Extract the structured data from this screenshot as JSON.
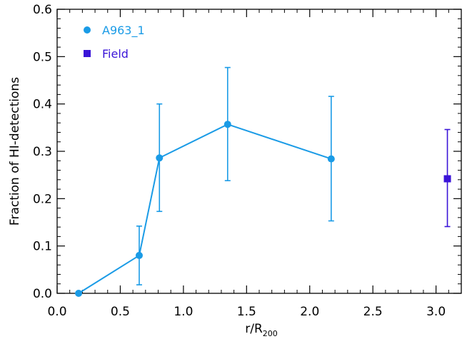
{
  "chart_data": {
    "type": "line",
    "xlabel": "r/R",
    "xlabel_sub": "200",
    "ylabel": "Fraction of HI-detections",
    "xlim": [
      0.0,
      3.2
    ],
    "ylim": [
      0.0,
      0.6
    ],
    "x_ticks": [
      "0.0",
      "0.5",
      "1.0",
      "1.5",
      "2.0",
      "2.5",
      "3.0"
    ],
    "y_ticks": [
      "0.0",
      "0.1",
      "0.2",
      "0.3",
      "0.4",
      "0.5",
      "0.6"
    ],
    "grid": false,
    "legend_position": "top-left",
    "series": [
      {
        "name": "A963_1",
        "color": "#1a9be6",
        "marker": "circle",
        "line": true,
        "x": [
          0.17,
          0.65,
          0.81,
          1.35,
          2.17
        ],
        "y": [
          0.0,
          0.08,
          0.286,
          0.357,
          0.284
        ],
        "yerr_low": [
          0.0,
          0.018,
          0.173,
          0.238,
          0.153
        ],
        "yerr_high": [
          0.0,
          0.142,
          0.4,
          0.477,
          0.416
        ]
      },
      {
        "name": "Field",
        "color": "#3a14d8",
        "marker": "square",
        "line": false,
        "x": [
          3.09
        ],
        "y": [
          0.242
        ],
        "yerr_low": [
          0.141
        ],
        "yerr_high": [
          0.346
        ]
      }
    ]
  }
}
